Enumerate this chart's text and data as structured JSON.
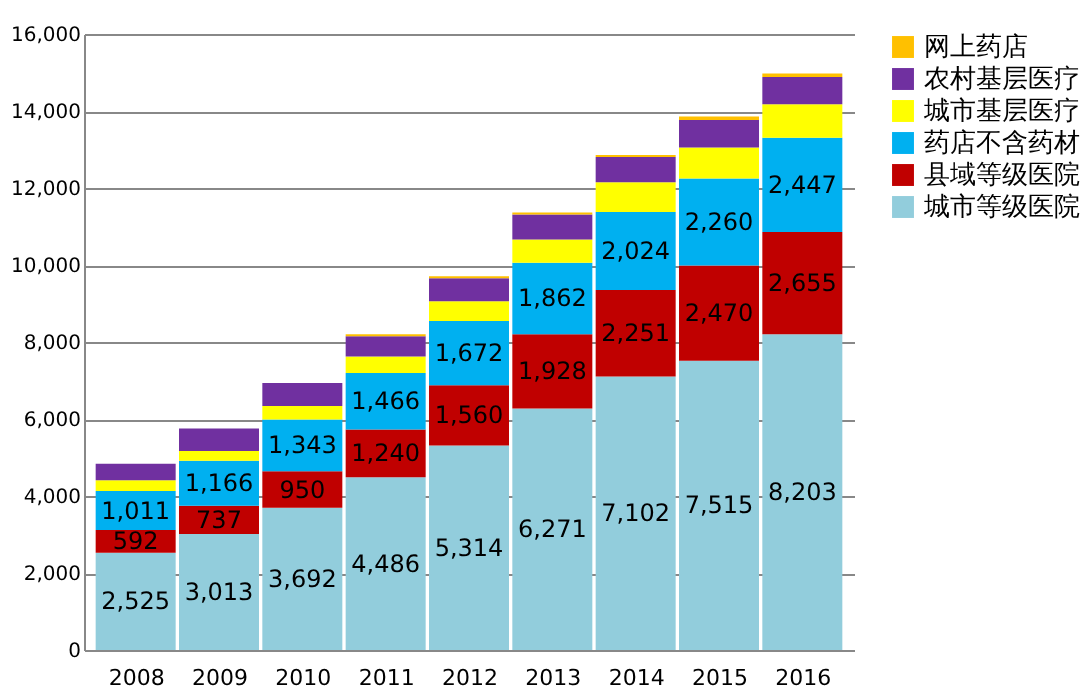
{
  "chart_data": {
    "type": "bar",
    "stacked": true,
    "categories": [
      "2008",
      "2009",
      "2010",
      "2011",
      "2012",
      "2013",
      "2014",
      "2015",
      "2016"
    ],
    "ylim": [
      0,
      16000
    ],
    "yticks": [
      {
        "value": 0,
        "label": "0"
      },
      {
        "value": 2000,
        "label": "2,000"
      },
      {
        "value": 4000,
        "label": "4,000"
      },
      {
        "value": 6000,
        "label": "6,000"
      },
      {
        "value": 8000,
        "label": "8,000"
      },
      {
        "value": 10000,
        "label": "10,000"
      },
      {
        "value": 12000,
        "label": "12,000"
      },
      {
        "value": 14000,
        "label": "14,000"
      },
      {
        "value": 16000,
        "label": "16,000"
      }
    ],
    "grid": "y",
    "legend": "right",
    "series": [
      {
        "name": "城市等级医院",
        "color": "#92cddc",
        "values": [
          2525,
          3013,
          3692,
          4486,
          5314,
          6271,
          7102,
          7515,
          8203
        ],
        "value_labels": [
          "2,525",
          "3,013",
          "3,692",
          "4,486",
          "5,314",
          "6,271",
          "7,102",
          "7,515",
          "8,203"
        ]
      },
      {
        "name": "县域等级医院",
        "color": "#c00000",
        "values": [
          592,
          737,
          950,
          1240,
          1560,
          1928,
          2251,
          2470,
          2655
        ],
        "value_labels": [
          "592",
          "737",
          "950",
          "1,240",
          "1,560",
          "1,928",
          "2,251",
          "2,470",
          "2,655"
        ]
      },
      {
        "name": "药店不含药材",
        "color": "#00b0f0",
        "values": [
          1011,
          1166,
          1343,
          1466,
          1672,
          1862,
          2024,
          2260,
          2447
        ],
        "value_labels": [
          "1,011",
          "1,166",
          "1,343",
          "1,466",
          "1,672",
          "1,862",
          "2,024",
          "2,260",
          "2,447"
        ]
      },
      {
        "name": "城市基层医疗",
        "color": "#ffff00",
        "values": [
          280,
          250,
          350,
          430,
          510,
          600,
          770,
          810,
          870
        ]
      },
      {
        "name": "农村基层医疗",
        "color": "#7030a0",
        "values": [
          430,
          590,
          600,
          530,
          600,
          650,
          660,
          710,
          710
        ]
      },
      {
        "name": "网上药店",
        "color": "#ffc000",
        "values": [
          0,
          0,
          0,
          50,
          50,
          50,
          50,
          90,
          90
        ]
      }
    ]
  }
}
